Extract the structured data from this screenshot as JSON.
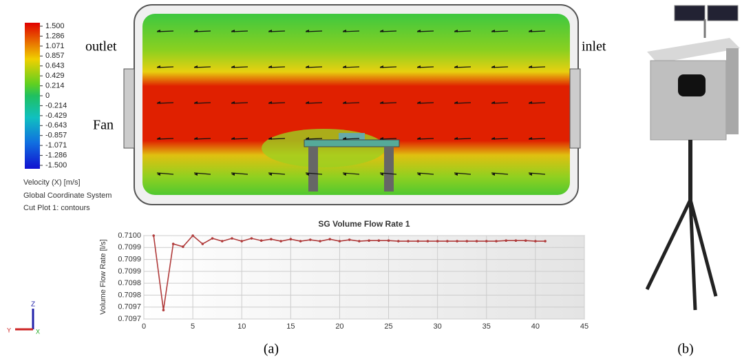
{
  "chart_data": {
    "type": "line",
    "title": "SG Volume Flow Rate 1",
    "y_label": "Volume Flow Rate [l/s]",
    "x": [
      1,
      2,
      3,
      4,
      5,
      6,
      7,
      8,
      9,
      10,
      11,
      12,
      13,
      14,
      15,
      16,
      17,
      18,
      19,
      20,
      21,
      22,
      23,
      24,
      25,
      26,
      27,
      28,
      29,
      30,
      31,
      32,
      33,
      34,
      35,
      36,
      37,
      38,
      39,
      40,
      41
    ],
    "series": [
      {
        "color": "#b03a3a",
        "values": [
          0.70998,
          0.709711,
          0.70995,
          0.70994,
          0.70998,
          0.70995,
          0.70997,
          0.70996,
          0.70997,
          0.70996,
          0.70997,
          0.709962,
          0.709967,
          0.70996,
          0.709967,
          0.70996,
          0.709965,
          0.70996,
          0.709967,
          0.70996,
          0.709965,
          0.70996,
          0.709962,
          0.709962,
          0.709962,
          0.70996,
          0.70996,
          0.70996,
          0.70996,
          0.70996,
          0.70996,
          0.70996,
          0.70996,
          0.70996,
          0.70996,
          0.70996,
          0.709962,
          0.709962,
          0.709962,
          0.70996,
          0.70996
        ]
      }
    ],
    "xlim": [
      0,
      45
    ],
    "xticks": [
      0,
      5,
      10,
      15,
      20,
      25,
      30,
      35,
      40,
      45
    ],
    "ylim": [
      0.709679,
      0.70998
    ],
    "yticks": [
      {
        "value": 0.70998,
        "label": "0.7100"
      },
      {
        "value": 0.709937,
        "label": "0.7099"
      },
      {
        "value": 0.709894,
        "label": "0.7099"
      },
      {
        "value": 0.709851,
        "label": "0.7099"
      },
      {
        "value": 0.709808,
        "label": "0.7098"
      },
      {
        "value": 0.709765,
        "label": "0.7098"
      },
      {
        "value": 0.709722,
        "label": "0.7097"
      },
      {
        "value": 0.709679,
        "label": "0.7097"
      }
    ],
    "grid": true
  },
  "figure": {
    "colorbar": {
      "ticks": [
        {
          "value": 1.5,
          "label": "1.500"
        },
        1.286,
        1.071,
        0.857,
        0.643,
        0.429,
        0.214,
        0,
        -0.214,
        -0.429,
        -0.643,
        -0.857,
        -1.071,
        -1.286,
        {
          "value": -1.5,
          "label": "-1.500"
        }
      ],
      "title": "Velocity (X) [m/s]",
      "system": "Global Coordinate System",
      "plot": "Cut Plot 1: contours"
    },
    "labels": {
      "outlet": "outlet",
      "inlet": "inlet",
      "fan": "Fan",
      "a": "(a)",
      "b": "(b)"
    },
    "triad": {
      "z": "Z",
      "y": "Y",
      "x": "X"
    }
  }
}
